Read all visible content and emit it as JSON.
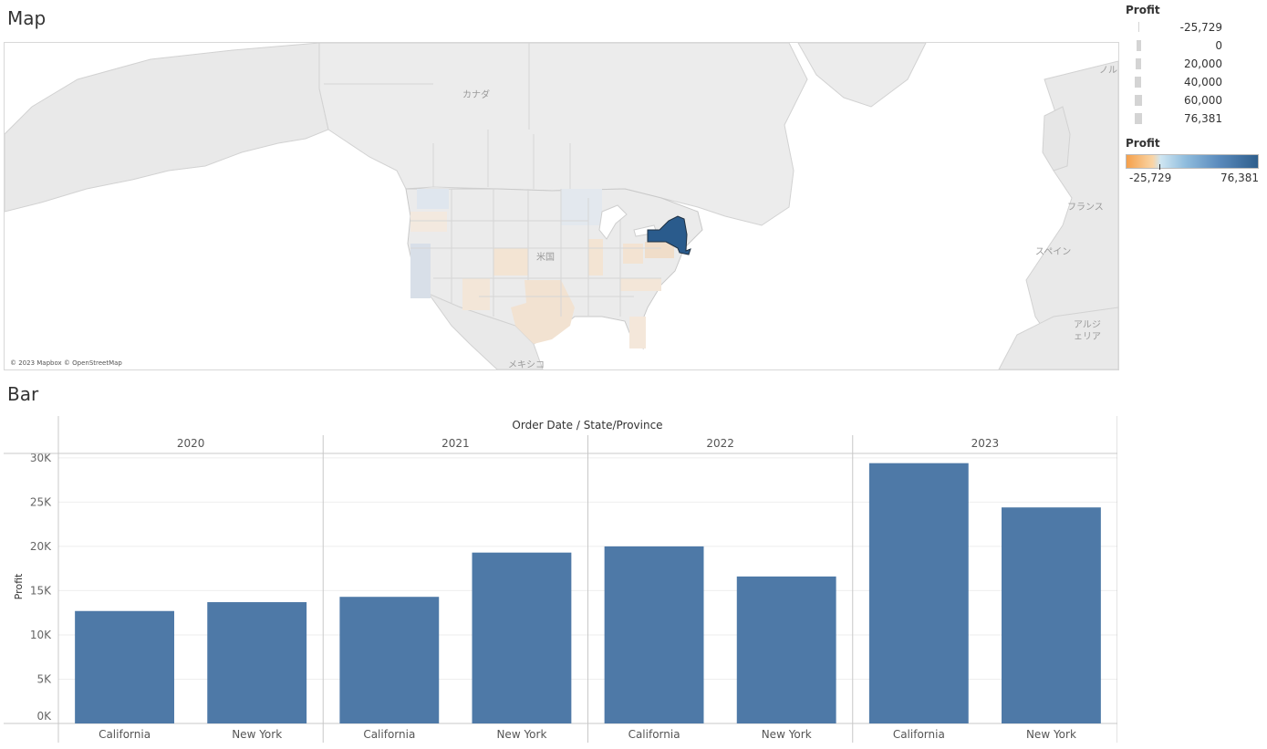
{
  "map": {
    "title": "Map",
    "attribution": "© 2023 Mapbox © OpenStreetMap",
    "labels": {
      "canada": "カナダ",
      "usa": "米国",
      "mexico": "メキシコ",
      "france": "フランス",
      "spain": "スペイン",
      "algeria_line1": "アルジ",
      "algeria_line2": "ェリア",
      "norway_partial": "ノル"
    },
    "highlighted_state": "New York",
    "colors": {
      "ocean": "#ffffff",
      "land": "#e8e8e8",
      "land_border": "#c9c9c9",
      "highlight": "#2a5b8c",
      "negative_tint": "#f3e1d0",
      "positive_tint": "#dfe6ee"
    }
  },
  "size_legend": {
    "title": "Profit",
    "items": [
      {
        "label": "-25,729"
      },
      {
        "label": "0"
      },
      {
        "label": "20,000"
      },
      {
        "label": "40,000"
      },
      {
        "label": "60,000"
      },
      {
        "label": "76,381"
      }
    ]
  },
  "color_legend": {
    "title": "Profit",
    "min_label": "-25,729",
    "max_label": "76,381"
  },
  "bar": {
    "title": "Bar"
  },
  "chart_data": {
    "type": "bar",
    "title": "",
    "column_header": "Order Date / State/Province",
    "ylabel": "Profit",
    "ylim": [
      0,
      30500
    ],
    "yticks": [
      0,
      5000,
      10000,
      15000,
      20000,
      25000,
      30000
    ],
    "ytick_labels": [
      "0K",
      "5K",
      "10K",
      "15K",
      "20K",
      "25K",
      "30K"
    ],
    "bar_color": "#4e79a7",
    "groups": [
      {
        "year": "2020",
        "bars": [
          {
            "state": "California",
            "value": 12700
          },
          {
            "state": "New York",
            "value": 13700
          }
        ]
      },
      {
        "year": "2021",
        "bars": [
          {
            "state": "California",
            "value": 14300
          },
          {
            "state": "New York",
            "value": 19300
          }
        ]
      },
      {
        "year": "2022",
        "bars": [
          {
            "state": "California",
            "value": 20000
          },
          {
            "state": "New York",
            "value": 16600
          }
        ]
      },
      {
        "year": "2023",
        "bars": [
          {
            "state": "California",
            "value": 29400
          },
          {
            "state": "New York",
            "value": 24400
          }
        ]
      }
    ]
  }
}
